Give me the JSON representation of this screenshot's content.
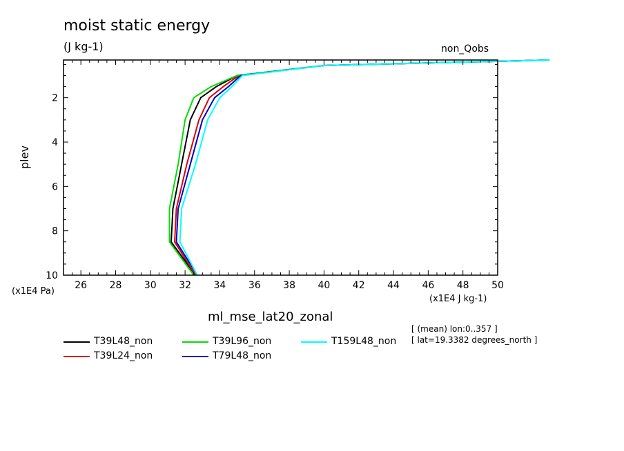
{
  "chart_data": {
    "type": "line",
    "title": "moist static energy",
    "units": "(J kg-1)",
    "corner_label": "non_Qobs",
    "dataset_name": "ml_mse_lat20_zonal",
    "ylabel": "plev",
    "y_multiplier": "(x1E4 Pa)",
    "x_multiplier": "(x1E4 J kg-1)",
    "xlim": [
      25,
      50
    ],
    "ylim": [
      10,
      0.3
    ],
    "x_ticks": [
      "26",
      "28",
      "30",
      "32",
      "34",
      "36",
      "38",
      "40",
      "42",
      "44",
      "46",
      "48",
      "50"
    ],
    "y_ticks": [
      "2",
      "4",
      "6",
      "8",
      "10"
    ],
    "notes": [
      "[ (mean) lon:0..357 ]",
      "[ lat=19.3382 degrees_north ]"
    ],
    "series": [
      {
        "name": "T39L48_non",
        "color": "#000000",
        "x": [
          32.6,
          31.2,
          31.3,
          31.8,
          32.3,
          32.9,
          33.8,
          35.0,
          40.0,
          53.0
        ],
        "y": [
          10,
          8.5,
          7.0,
          5.0,
          3.0,
          2.0,
          1.5,
          1.0,
          0.55,
          0.3
        ]
      },
      {
        "name": "T39L24_non",
        "color": "#dd0000",
        "x": [
          32.6,
          31.4,
          31.5,
          32.1,
          32.8,
          33.4,
          34.2,
          35.1,
          40.0,
          53.0
        ],
        "y": [
          10,
          8.5,
          7.0,
          5.0,
          3.0,
          2.0,
          1.5,
          1.0,
          0.55,
          0.3
        ]
      },
      {
        "name": "T39L96_non",
        "color": "#00dd00",
        "x": [
          32.5,
          31.1,
          31.1,
          31.6,
          32.0,
          32.5,
          33.5,
          35.0,
          40.0,
          53.0
        ],
        "y": [
          10,
          8.5,
          7.0,
          5.0,
          3.0,
          2.0,
          1.5,
          1.0,
          0.55,
          0.3
        ]
      },
      {
        "name": "T79L48_non",
        "color": "#0000cc",
        "x": [
          32.7,
          31.5,
          31.6,
          32.3,
          33.0,
          33.7,
          34.5,
          35.2,
          40.0,
          53.0
        ],
        "y": [
          10,
          8.5,
          7.0,
          5.0,
          3.0,
          2.0,
          1.5,
          1.0,
          0.55,
          0.3
        ]
      },
      {
        "name": "T159L48_non",
        "color": "#00ffff",
        "x": [
          32.7,
          31.7,
          31.8,
          32.6,
          33.3,
          34.0,
          34.7,
          35.3,
          40.0,
          53.0
        ],
        "y": [
          10,
          8.5,
          7.0,
          5.0,
          3.0,
          2.0,
          1.5,
          1.0,
          0.55,
          0.3
        ]
      }
    ]
  }
}
